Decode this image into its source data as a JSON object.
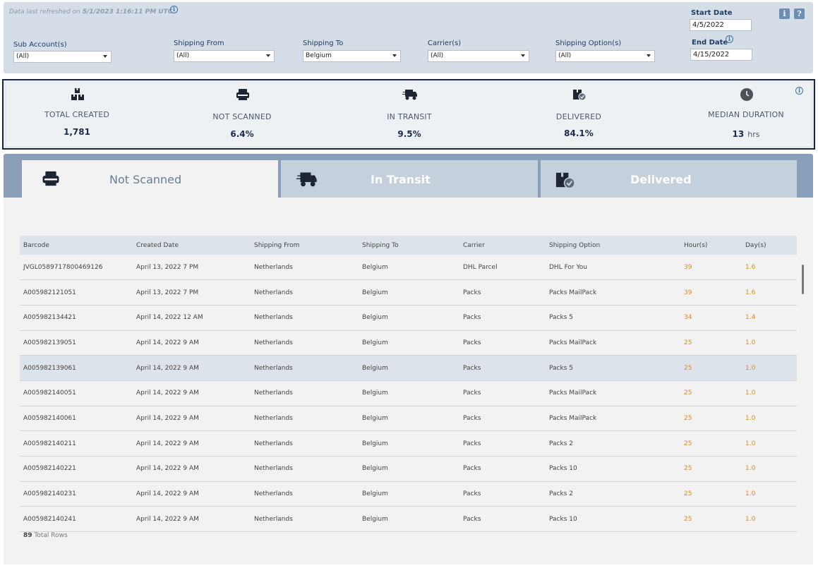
{
  "refresh": {
    "prefix": "Data last refreshed on",
    "value": "5/1/2023 1:16:11 PM UTC"
  },
  "filters": {
    "sub_account": {
      "label": "Sub Account(s)",
      "value": "(All)"
    },
    "shipping_from": {
      "label": "Shipping From",
      "value": "(All)"
    },
    "shipping_to": {
      "label": "Shipping To",
      "value": "Belgium"
    },
    "carrier": {
      "label": "Carrier(s)",
      "value": "(All)"
    },
    "shipping_option": {
      "label": "Shipping Option(s)",
      "value": "(All)"
    },
    "start_date": {
      "label": "Start Date",
      "value": "4/5/2022"
    },
    "end_date": {
      "label": "End Date",
      "value": "4/15/2022"
    },
    "info_btn": "i",
    "help_btn": "?"
  },
  "kpis": {
    "total_created": {
      "label": "TOTAL CREATED",
      "value": "1,781"
    },
    "not_scanned": {
      "label": "NOT SCANNED",
      "value": "6.4%"
    },
    "in_transit": {
      "label": "IN TRANSIT",
      "value": "9.5%"
    },
    "delivered": {
      "label": "DELIVERED",
      "value": "84.1%"
    },
    "median_duration": {
      "label": "MEDIAN DURATION",
      "value": "13",
      "unit": "hrs"
    }
  },
  "tabs": [
    {
      "label": "Not Scanned",
      "active": true
    },
    {
      "label": "In Transit",
      "active": false
    },
    {
      "label": "Delivered",
      "active": false
    }
  ],
  "table": {
    "headers": [
      "Barcode",
      "Created Date",
      "Shipping From",
      "Shipping To",
      "Carrier",
      "Shipping Option",
      "Hour(s)",
      "Day(s)"
    ],
    "rows": [
      [
        "JVGL0589717800469126",
        "April 13, 2022 7 PM",
        "Netherlands",
        "Belgium",
        "DHL Parcel",
        "DHL For You",
        "39",
        "1.6"
      ],
      [
        "A005982121051",
        "April 13, 2022 7 PM",
        "Netherlands",
        "Belgium",
        "Packs",
        "Packs MailPack",
        "39",
        "1.6"
      ],
      [
        "A005982134421",
        "April 14, 2022 12 AM",
        "Netherlands",
        "Belgium",
        "Packs",
        "Packs 5",
        "34",
        "1.4"
      ],
      [
        "A005982139051",
        "April 14, 2022 9 AM",
        "Netherlands",
        "Belgium",
        "Packs",
        "Packs MailPack",
        "25",
        "1.0"
      ],
      [
        "A005982139061",
        "April 14, 2022 9 AM",
        "Netherlands",
        "Belgium",
        "Packs",
        "Packs 5",
        "25",
        "1.0"
      ],
      [
        "A005982140051",
        "April 14, 2022 9 AM",
        "Netherlands",
        "Belgium",
        "Packs",
        "Packs MailPack",
        "25",
        "1.0"
      ],
      [
        "A005982140061",
        "April 14, 2022 9 AM",
        "Netherlands",
        "Belgium",
        "Packs",
        "Packs MailPack",
        "25",
        "1.0"
      ],
      [
        "A005982140211",
        "April 14, 2022 9 AM",
        "Netherlands",
        "Belgium",
        "Packs",
        "Packs 2",
        "25",
        "1.0"
      ],
      [
        "A005982140221",
        "April 14, 2022 9 AM",
        "Netherlands",
        "Belgium",
        "Packs",
        "Packs 10",
        "25",
        "1.0"
      ],
      [
        "A005982140231",
        "April 14, 2022 9 AM",
        "Netherlands",
        "Belgium",
        "Packs",
        "Packs 2",
        "25",
        "1.0"
      ],
      [
        "A005982140241",
        "April 14, 2022 9 AM",
        "Netherlands",
        "Belgium",
        "Packs",
        "Packs 10",
        "25",
        "1.0"
      ]
    ],
    "highlighted_row": 4,
    "total_count": "89",
    "total_label": "Total Rows"
  },
  "colors": {
    "accent": "#1f3c66",
    "hours": "#e08a1e",
    "tab_bar": "#8aa0ba"
  }
}
